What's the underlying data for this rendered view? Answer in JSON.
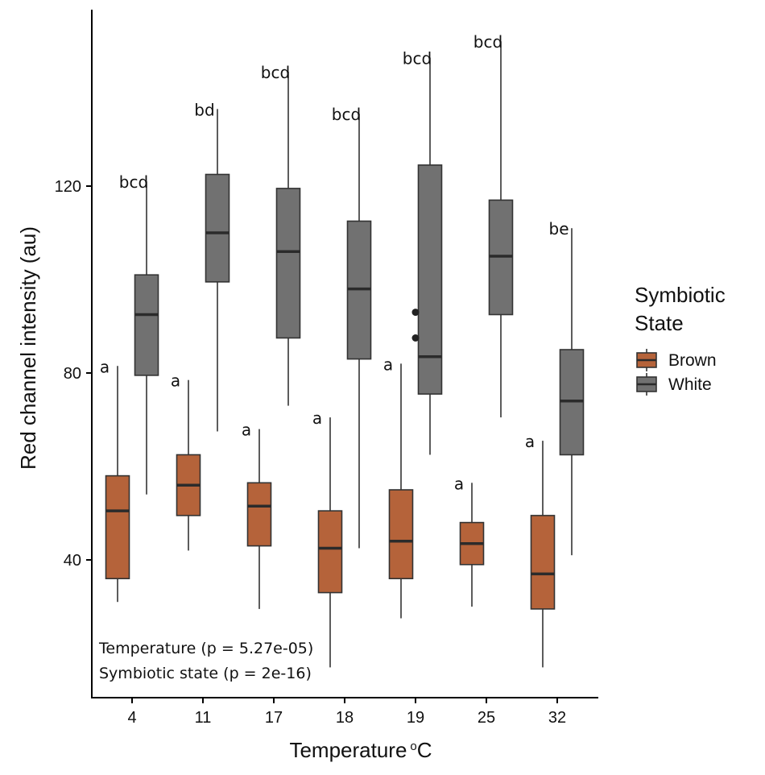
{
  "chart_data": {
    "type": "box",
    "xlabel": "Temperature",
    "xlabel_sup": "o",
    "xlabel_unit": "C",
    "ylabel": "Red channel intensity (au)",
    "ylim": [
      12,
      160
    ],
    "yticks": [
      40,
      80,
      120
    ],
    "categories": [
      "4",
      "11",
      "17",
      "18",
      "19",
      "25",
      "32"
    ],
    "legend": {
      "title_lines": [
        "Symbiotic",
        "State"
      ],
      "position": "right"
    },
    "annotations": [
      "Temperature (p = 5.27e-05)",
      "Symbiotic state (p = 2e-16)"
    ],
    "series": [
      {
        "name": "Brown",
        "color": "#b5633a",
        "boxes": [
          {
            "category": "4",
            "whisker_low": 31,
            "q1": 36,
            "median": 50.5,
            "q3": 58,
            "whisker_high": 81.5,
            "letter": "a"
          },
          {
            "category": "11",
            "whisker_low": 42,
            "q1": 49.5,
            "median": 56,
            "q3": 62.5,
            "whisker_high": 78.5,
            "letter": "a"
          },
          {
            "category": "17",
            "whisker_low": 29.5,
            "q1": 43,
            "median": 51.5,
            "q3": 56.5,
            "whisker_high": 68,
            "letter": "a"
          },
          {
            "category": "18",
            "whisker_low": 17,
            "q1": 33,
            "median": 42.5,
            "q3": 50.5,
            "whisker_high": 70.5,
            "letter": "a"
          },
          {
            "category": "19",
            "whisker_low": 27.5,
            "q1": 36,
            "median": 44,
            "q3": 55,
            "whisker_high": 82,
            "letter": "a"
          },
          {
            "category": "25",
            "whisker_low": 30,
            "q1": 39,
            "median": 43.5,
            "q3": 48,
            "whisker_high": 56.5,
            "letter": "a"
          },
          {
            "category": "32",
            "whisker_low": 17,
            "q1": 29.5,
            "median": 37,
            "q3": 49.5,
            "whisker_high": 65.5,
            "letter": "a"
          }
        ],
        "outliers": []
      },
      {
        "name": "White",
        "color": "#717171",
        "boxes": [
          {
            "category": "4",
            "whisker_low": 54,
            "q1": 79.5,
            "median": 92.5,
            "q3": 101,
            "whisker_high": 121,
            "letter": "bcd"
          },
          {
            "category": "11",
            "whisker_low": 67.5,
            "q1": 99.5,
            "median": 110,
            "q3": 122.5,
            "whisker_high": 136.5,
            "letter": "bd"
          },
          {
            "category": "17",
            "whisker_low": 73,
            "q1": 87.5,
            "median": 106,
            "q3": 119.5,
            "whisker_high": 144.5,
            "letter": "bcd"
          },
          {
            "category": "18",
            "whisker_low": 42.5,
            "q1": 83,
            "median": 98,
            "q3": 112.5,
            "whisker_high": 135.5,
            "letter": "bcd"
          },
          {
            "category": "19",
            "whisker_low": 62.5,
            "q1": 75.5,
            "median": 83.5,
            "q3": 124.5,
            "whisker_high": 147.5,
            "letter": "bcd"
          },
          {
            "category": "25",
            "whisker_low": 70.5,
            "q1": 92.5,
            "median": 105,
            "q3": 117,
            "whisker_high": 151,
            "letter": "bcd"
          },
          {
            "category": "32",
            "whisker_low": 41,
            "q1": 62.5,
            "median": 74,
            "q3": 85,
            "whisker_high": 111,
            "letter": "be"
          }
        ],
        "outliers": [
          {
            "category": "19",
            "value": 93
          },
          {
            "category": "19",
            "value": 87.5
          }
        ]
      }
    ]
  }
}
